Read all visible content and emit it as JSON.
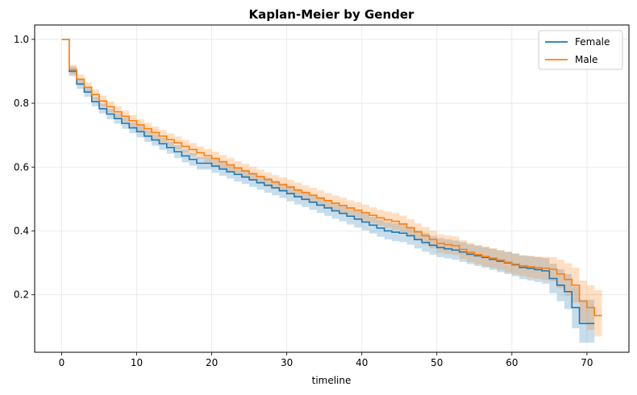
{
  "chart_data": {
    "type": "line",
    "subtype": "step-survival-with-confidence-band",
    "title": "Kaplan-Meier by Gender",
    "xlabel": "timeline",
    "ylabel": "",
    "xlim": [
      -3.6,
      75.6
    ],
    "ylim": [
      0.02,
      1.045
    ],
    "x_ticks": [
      0,
      10,
      20,
      30,
      40,
      50,
      60,
      70
    ],
    "y_ticks": [
      0.2,
      0.4,
      0.6,
      0.8,
      1.0
    ],
    "y_tick_labels": [
      "0.2",
      "0.4",
      "0.6",
      "0.8",
      "1.0"
    ],
    "grid": true,
    "legend_position": "top-right",
    "series": [
      {
        "name": "Female",
        "color": "#1f77b4",
        "band_color": "#1f77b4",
        "x": [
          0,
          1,
          2,
          3,
          4,
          5,
          6,
          7,
          8,
          9,
          10,
          11,
          12,
          13,
          14,
          15,
          16,
          17,
          18,
          20,
          21,
          22,
          23,
          24,
          25,
          26,
          27,
          28,
          29,
          30,
          31,
          32,
          33,
          34,
          35,
          36,
          37,
          38,
          39,
          40,
          41,
          42,
          43,
          44,
          45,
          46,
          47,
          48,
          49,
          50,
          51,
          52,
          53,
          54,
          55,
          56,
          57,
          58,
          59,
          60,
          61,
          62,
          63,
          64,
          65,
          66,
          67,
          68,
          69,
          70,
          71
        ],
        "y": [
          1.0,
          0.9,
          0.86,
          0.835,
          0.805,
          0.783,
          0.766,
          0.752,
          0.737,
          0.723,
          0.711,
          0.697,
          0.685,
          0.673,
          0.661,
          0.648,
          0.635,
          0.624,
          0.612,
          0.603,
          0.594,
          0.585,
          0.577,
          0.569,
          0.56,
          0.551,
          0.543,
          0.535,
          0.526,
          0.517,
          0.507,
          0.499,
          0.49,
          0.481,
          0.472,
          0.463,
          0.455,
          0.446,
          0.437,
          0.428,
          0.418,
          0.409,
          0.4,
          0.396,
          0.393,
          0.385,
          0.373,
          0.364,
          0.355,
          0.348,
          0.344,
          0.34,
          0.334,
          0.327,
          0.322,
          0.317,
          0.311,
          0.305,
          0.3,
          0.294,
          0.286,
          0.283,
          0.279,
          0.275,
          0.251,
          0.23,
          0.21,
          0.16,
          0.11,
          0.11,
          0.11
        ],
        "lower": [
          1.0,
          0.885,
          0.845,
          0.82,
          0.79,
          0.768,
          0.75,
          0.736,
          0.72,
          0.706,
          0.693,
          0.679,
          0.667,
          0.654,
          0.642,
          0.628,
          0.615,
          0.604,
          0.592,
          0.582,
          0.573,
          0.564,
          0.555,
          0.547,
          0.538,
          0.529,
          0.52,
          0.512,
          0.503,
          0.493,
          0.483,
          0.475,
          0.466,
          0.456,
          0.447,
          0.438,
          0.43,
          0.42,
          0.411,
          0.402,
          0.392,
          0.382,
          0.373,
          0.368,
          0.365,
          0.357,
          0.345,
          0.335,
          0.326,
          0.318,
          0.314,
          0.31,
          0.303,
          0.296,
          0.29,
          0.285,
          0.278,
          0.271,
          0.265,
          0.258,
          0.249,
          0.245,
          0.24,
          0.235,
          0.205,
          0.18,
          0.155,
          0.095,
          0.05,
          0.05,
          0.05
        ],
        "upper": [
          1.0,
          0.915,
          0.875,
          0.85,
          0.82,
          0.798,
          0.782,
          0.768,
          0.754,
          0.74,
          0.729,
          0.715,
          0.703,
          0.692,
          0.68,
          0.668,
          0.655,
          0.644,
          0.632,
          0.624,
          0.615,
          0.606,
          0.599,
          0.591,
          0.582,
          0.573,
          0.566,
          0.558,
          0.549,
          0.541,
          0.531,
          0.523,
          0.514,
          0.506,
          0.497,
          0.488,
          0.48,
          0.472,
          0.463,
          0.454,
          0.444,
          0.436,
          0.427,
          0.424,
          0.421,
          0.413,
          0.401,
          0.393,
          0.384,
          0.378,
          0.374,
          0.37,
          0.365,
          0.358,
          0.354,
          0.349,
          0.344,
          0.339,
          0.335,
          0.33,
          0.323,
          0.321,
          0.318,
          0.315,
          0.297,
          0.28,
          0.265,
          0.225,
          0.185,
          0.185,
          0.185
        ],
        "x_end": 71
      },
      {
        "name": "Male",
        "color": "#ff7f0e",
        "band_color": "#ff7f0e",
        "x": [
          0,
          1,
          2,
          3,
          4,
          5,
          6,
          7,
          8,
          9,
          10,
          11,
          12,
          13,
          14,
          15,
          16,
          17,
          18,
          19,
          20,
          21,
          22,
          23,
          24,
          25,
          26,
          27,
          28,
          29,
          30,
          31,
          32,
          33,
          34,
          35,
          36,
          37,
          38,
          39,
          40,
          41,
          42,
          43,
          44,
          45,
          46,
          47,
          48,
          49,
          50,
          51,
          52,
          53,
          54,
          55,
          56,
          57,
          58,
          59,
          60,
          61,
          62,
          63,
          64,
          65,
          66,
          67,
          68,
          69,
          70,
          71
        ],
        "y": [
          1.0,
          0.905,
          0.875,
          0.85,
          0.827,
          0.807,
          0.789,
          0.773,
          0.759,
          0.745,
          0.732,
          0.72,
          0.708,
          0.697,
          0.686,
          0.676,
          0.665,
          0.655,
          0.645,
          0.636,
          0.627,
          0.617,
          0.607,
          0.597,
          0.588,
          0.579,
          0.57,
          0.561,
          0.553,
          0.545,
          0.537,
          0.528,
          0.52,
          0.512,
          0.503,
          0.495,
          0.487,
          0.48,
          0.472,
          0.465,
          0.457,
          0.449,
          0.441,
          0.435,
          0.43,
          0.422,
          0.41,
          0.397,
          0.385,
          0.373,
          0.361,
          0.357,
          0.354,
          0.342,
          0.333,
          0.326,
          0.32,
          0.315,
          0.309,
          0.302,
          0.296,
          0.291,
          0.288,
          0.285,
          0.283,
          0.28,
          0.265,
          0.248,
          0.23,
          0.18,
          0.16,
          0.135
        ],
        "lower": [
          1.0,
          0.89,
          0.86,
          0.835,
          0.811,
          0.79,
          0.772,
          0.756,
          0.741,
          0.727,
          0.714,
          0.701,
          0.689,
          0.678,
          0.667,
          0.656,
          0.645,
          0.635,
          0.625,
          0.615,
          0.606,
          0.596,
          0.586,
          0.576,
          0.566,
          0.557,
          0.548,
          0.539,
          0.531,
          0.522,
          0.514,
          0.505,
          0.497,
          0.489,
          0.479,
          0.471,
          0.463,
          0.456,
          0.448,
          0.44,
          0.432,
          0.424,
          0.416,
          0.409,
          0.404,
          0.396,
          0.383,
          0.37,
          0.357,
          0.345,
          0.332,
          0.328,
          0.325,
          0.313,
          0.303,
          0.296,
          0.289,
          0.284,
          0.278,
          0.27,
          0.264,
          0.258,
          0.254,
          0.25,
          0.247,
          0.242,
          0.22,
          0.197,
          0.175,
          0.115,
          0.09,
          0.07
        ],
        "upper": [
          1.0,
          0.92,
          0.89,
          0.865,
          0.843,
          0.824,
          0.806,
          0.79,
          0.777,
          0.763,
          0.75,
          0.739,
          0.727,
          0.716,
          0.705,
          0.696,
          0.685,
          0.675,
          0.665,
          0.657,
          0.648,
          0.638,
          0.628,
          0.618,
          0.61,
          0.601,
          0.592,
          0.583,
          0.575,
          0.568,
          0.56,
          0.551,
          0.543,
          0.535,
          0.527,
          0.519,
          0.511,
          0.504,
          0.496,
          0.49,
          0.482,
          0.474,
          0.466,
          0.461,
          0.456,
          0.448,
          0.437,
          0.424,
          0.413,
          0.401,
          0.39,
          0.386,
          0.383,
          0.371,
          0.363,
          0.356,
          0.351,
          0.346,
          0.34,
          0.334,
          0.328,
          0.324,
          0.322,
          0.32,
          0.319,
          0.318,
          0.31,
          0.299,
          0.285,
          0.245,
          0.23,
          0.215
        ],
        "x_end": 72
      }
    ]
  }
}
